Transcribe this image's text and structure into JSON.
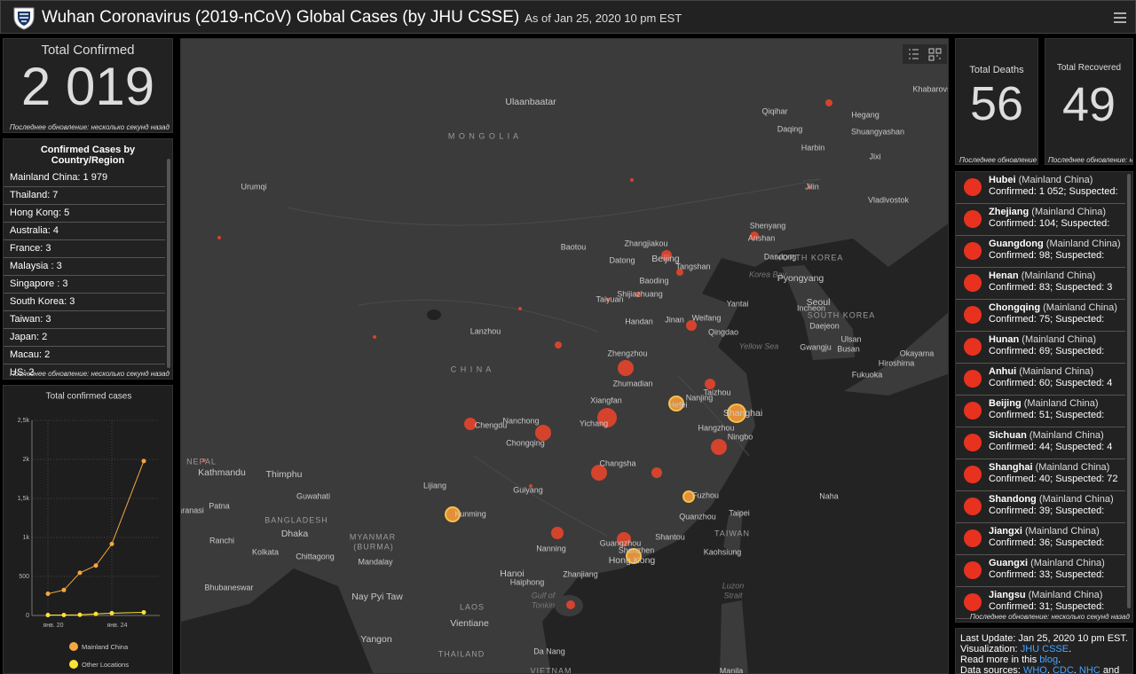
{
  "header": {
    "title": "Wuhan Coronavirus (2019-nCoV) Global Cases (by JHU CSSE)",
    "subtitle": "As of Jan 25, 2020 10 pm EST"
  },
  "total_confirmed": {
    "label": "Total Confirmed",
    "value": "2 019",
    "note": "Последнее обновление: несколько секунд назад"
  },
  "countries": {
    "title": "Confirmed Cases by Country/Region",
    "items": [
      "Mainland China:  1 979",
      "Thailand:  7",
      "Hong Kong:  5",
      "Australia:  4",
      "France:  3",
      "Malaysia :  3",
      "Singapore :  3",
      "South Korea:  3",
      "Taiwan:  3",
      "Japan:  2",
      "Macau:  2",
      "US:  2"
    ],
    "note": "Последнее обновление: несколько секунд назад"
  },
  "deaths": {
    "label": "Total Deaths",
    "value": "56",
    "note": "Последнее обновление"
  },
  "recovered": {
    "label": "Total Recovered",
    "value": "49",
    "note": "Последнее обновление: н"
  },
  "provinces": {
    "items": [
      {
        "name": "Hubei",
        "region": "(Mainland China)",
        "detail": "Confirmed: 1 052; Suspected:"
      },
      {
        "name": "Zhejiang",
        "region": "(Mainland China)",
        "detail": "Confirmed: 104; Suspected:"
      },
      {
        "name": "Guangdong",
        "region": "(Mainland China)",
        "detail": "Confirmed: 98; Suspected:"
      },
      {
        "name": "Henan",
        "region": "(Mainland China)",
        "detail": "Confirmed: 83; Suspected: 3"
      },
      {
        "name": "Chongqing",
        "region": "(Mainland China)",
        "detail": "Confirmed: 75; Suspected:"
      },
      {
        "name": "Hunan",
        "region": "(Mainland China)",
        "detail": "Confirmed: 69; Suspected:"
      },
      {
        "name": "Anhui",
        "region": "(Mainland China)",
        "detail": "Confirmed: 60; Suspected: 4"
      },
      {
        "name": "Beijing",
        "region": "(Mainland China)",
        "detail": "Confirmed: 51; Suspected:"
      },
      {
        "name": "Sichuan",
        "region": "(Mainland China)",
        "detail": "Confirmed: 44; Suspected: 4"
      },
      {
        "name": "Shanghai",
        "region": "(Mainland China)",
        "detail": "Confirmed: 40; Suspected: 72"
      },
      {
        "name": "Shandong",
        "region": "(Mainland China)",
        "detail": "Confirmed: 39; Suspected:"
      },
      {
        "name": "Jiangxi",
        "region": "(Mainland China)",
        "detail": "Confirmed: 36; Suspected:"
      },
      {
        "name": "Guangxi",
        "region": "(Mainland China)",
        "detail": "Confirmed: 33; Suspected:"
      },
      {
        "name": "Jiangsu",
        "region": "(Mainland China)",
        "detail": "Confirmed: 31; Suspected:"
      }
    ],
    "note": "Последнее обновление: несколько секунд назад"
  },
  "footer": {
    "update": "Last Update: Jan 25, 2020 10 pm EST.",
    "viz_label": "Visualization:",
    "viz_link": "JHU CSSE",
    "read_label": "Read more in this",
    "read_link": "blog",
    "sources_label": "Data sources:",
    "source_links": [
      "WHO",
      "CDC",
      "NHC"
    ],
    "sources_tail": "and"
  },
  "map": {
    "labels": [
      "Ulaanbaatar",
      "M O N G O L I A",
      "Urumqi",
      "Qiqihar",
      "Hegang",
      "Daqing",
      "Shuangyashan",
      "Harbin",
      "Jixi",
      "Jilin",
      "Vladivostok",
      "Khabarovs",
      "Shenyang",
      "Anshan",
      "Baotou",
      "Zhangjiakou",
      "Datong",
      "Beijing",
      "Tangshan",
      "Dandong",
      "NORTH KOREA",
      "Korea Bay",
      "Pyongyang",
      "Baoding",
      "Shijiazhuang",
      "Taiyuan",
      "Yantai",
      "Seoul",
      "Incheon",
      "SOUTH KOREA",
      "Handan",
      "Jinan",
      "Weifang",
      "Qingdao",
      "Lanzhou",
      "Daejeon",
      "Ulsan",
      "Busan",
      "Gwangju",
      "Yellow Sea",
      "Okayama",
      "Hiroshima",
      "Zhengzhou",
      "C H I N A",
      "Fukuoka",
      "Zhumadian",
      "Taizhou",
      "Nanjing",
      "Hefei",
      "Xiangfan",
      "Shanghai",
      "Yichang",
      "Chengdu",
      "Nanchong",
      "Hangzhou",
      "Ningbo",
      "Chongqing",
      "NEPAL",
      "Kathmandu",
      "Thimphu",
      "Changsha",
      "Lijiang",
      "Guwahati",
      "Guiyang",
      "Fuzhou",
      "Naha",
      "Patna",
      "aranasi",
      "Kunming",
      "Quanzhou",
      "Taipei",
      "BANGLADESH",
      "Dhaka",
      "MYANMAR",
      "(BURMA)",
      "Ranchi",
      "Nanning",
      "Guangzhou",
      "Shantou",
      "TAIWAN",
      "Shenzhen",
      "Hong Kong",
      "Kaohsiung",
      "Kolkata",
      "Chittagong",
      "Mandalay",
      "Hanoi",
      "Haiphong",
      "Zhanjiang",
      "Luzon",
      "Strait",
      "Bhubaneswar",
      "Gulf of",
      "Tonkin",
      "Nay Pyi Taw",
      "LAOS",
      "Vientiane",
      "Yangon",
      "THAILAND",
      "Da Nang",
      "VIETNAM",
      "Manila"
    ]
  },
  "chart_data": {
    "type": "line",
    "title": "Total confirmed cases",
    "x": [
      20,
      21,
      22,
      23,
      24,
      26
    ],
    "xlim": [
      19,
      27
    ],
    "xticks": [
      {
        "value": 20,
        "label": "янв. 20"
      },
      {
        "value": 24,
        "label": "янв. 24"
      }
    ],
    "ylim": [
      0,
      2500
    ],
    "yticks": [
      0,
      500,
      {
        "value": 1000,
        "label": "1k"
      },
      {
        "value": 1500,
        "label": "1,5k"
      },
      {
        "value": 2000,
        "label": "2k"
      },
      {
        "value": 2500,
        "label": "2,5k"
      }
    ],
    "grid": true,
    "series": [
      {
        "name": "Mainland China",
        "color": "#f5a742",
        "values": [
          278,
          326,
          547,
          639,
          916,
          1979
        ]
      },
      {
        "name": "Other Locations",
        "color": "#ffe234",
        "values": [
          5,
          6,
          9,
          20,
          30,
          40
        ]
      }
    ]
  }
}
